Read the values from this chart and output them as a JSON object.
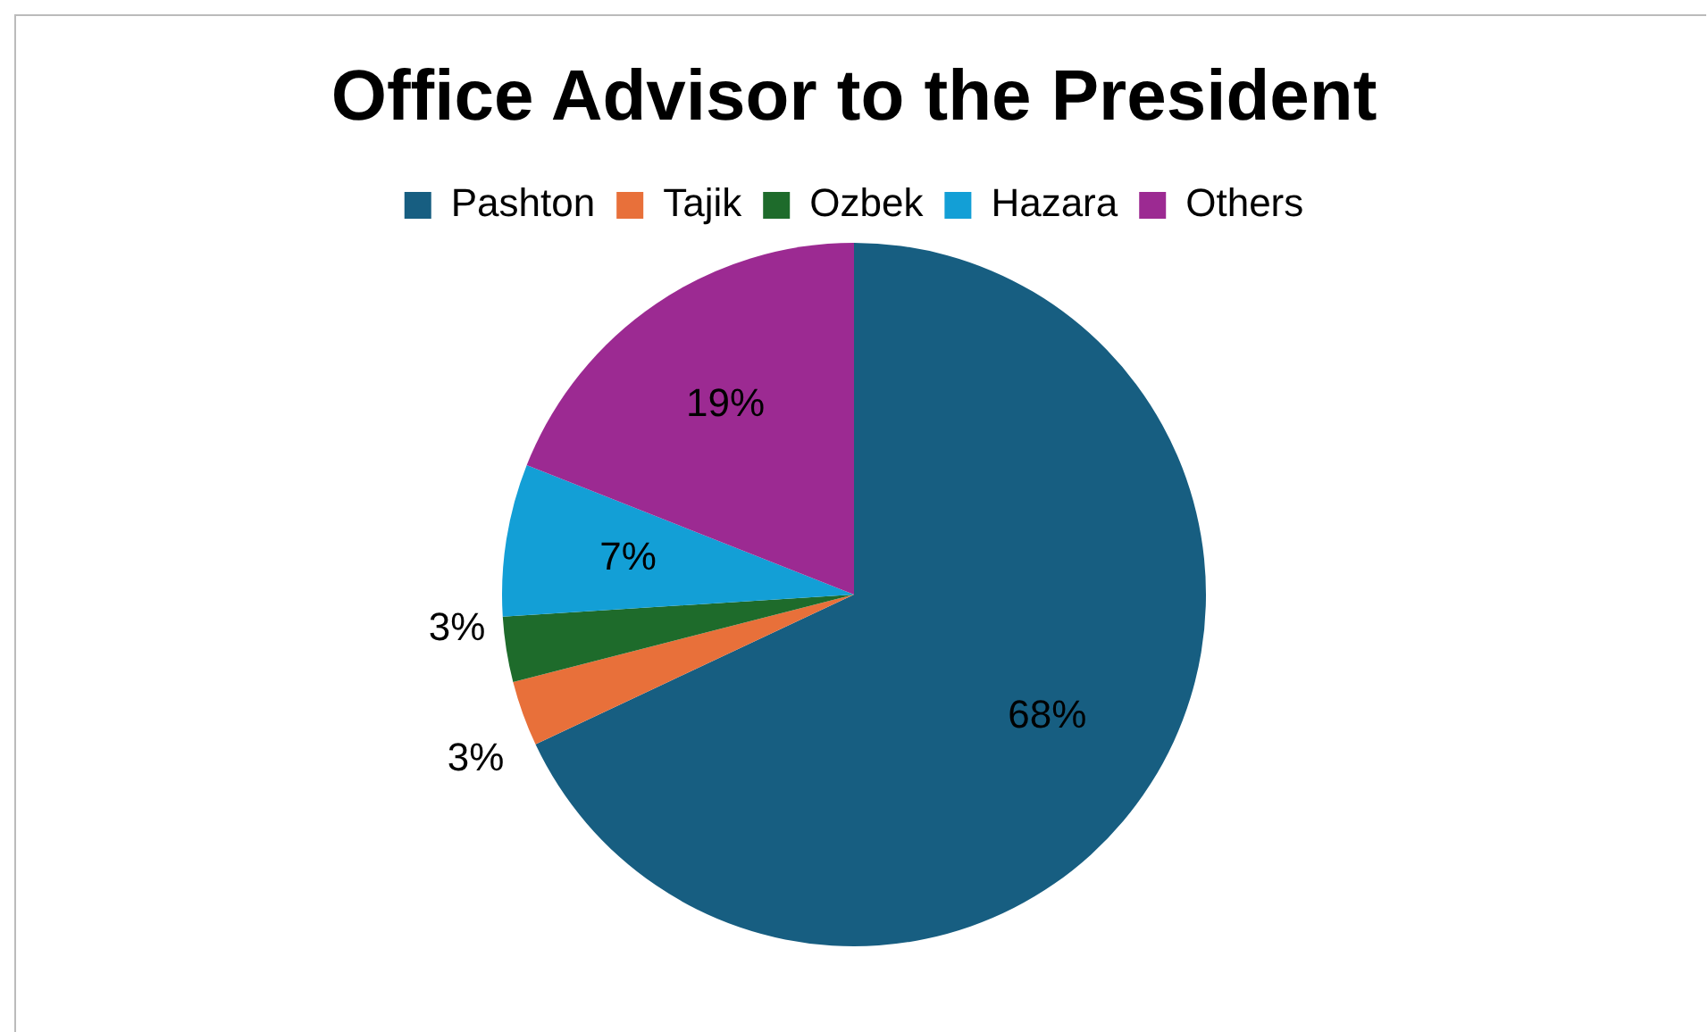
{
  "chart_data": {
    "type": "pie",
    "title": "Office Advisor to the President",
    "categories": [
      "Pashton",
      "Tajik",
      "Ozbek",
      "Hazara",
      "Others"
    ],
    "values": [
      68,
      3,
      3,
      7,
      19
    ],
    "colors": [
      "#175e81",
      "#e8703a",
      "#1e6b2b",
      "#139fd6",
      "#9c2a92"
    ],
    "value_labels": [
      "68%",
      "3%",
      "3%",
      "7%",
      "19%"
    ],
    "legend": "top"
  }
}
